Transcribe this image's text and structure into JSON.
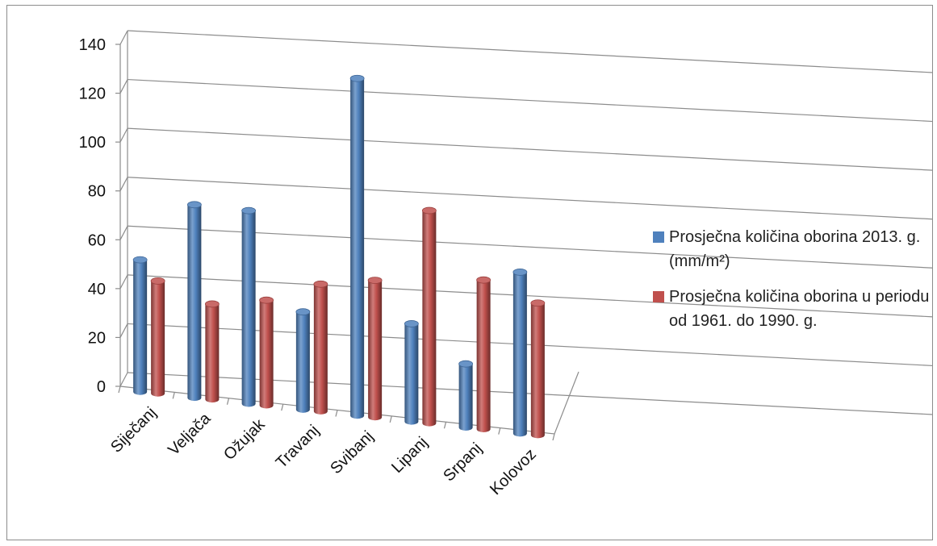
{
  "chart_data": {
    "type": "bar",
    "categories": [
      "Siječanj",
      "Veljača",
      "Ožujak",
      "Travanj",
      "Svibanj",
      "Lipanj",
      "Srpanj",
      "Kolovoz"
    ],
    "series": [
      {
        "name": "Prosječna količina oborina 2013. g. (mm/m²)",
        "color": "#4F81BD",
        "values": [
          54,
          79,
          79,
          40,
          138,
          40,
          26,
          66
        ]
      },
      {
        "name": "Prosječna količina oborina u periodu od 1961. do 1990. g.",
        "color": "#C0504D",
        "values": [
          46,
          39,
          43,
          52,
          56,
          87,
          61,
          54
        ]
      }
    ],
    "yticks": [
      0,
      20,
      40,
      60,
      80,
      100,
      120,
      140
    ],
    "ylim": [
      0,
      140
    ],
    "grid": true,
    "legend_position": "right",
    "style": "3d-cylinder"
  }
}
